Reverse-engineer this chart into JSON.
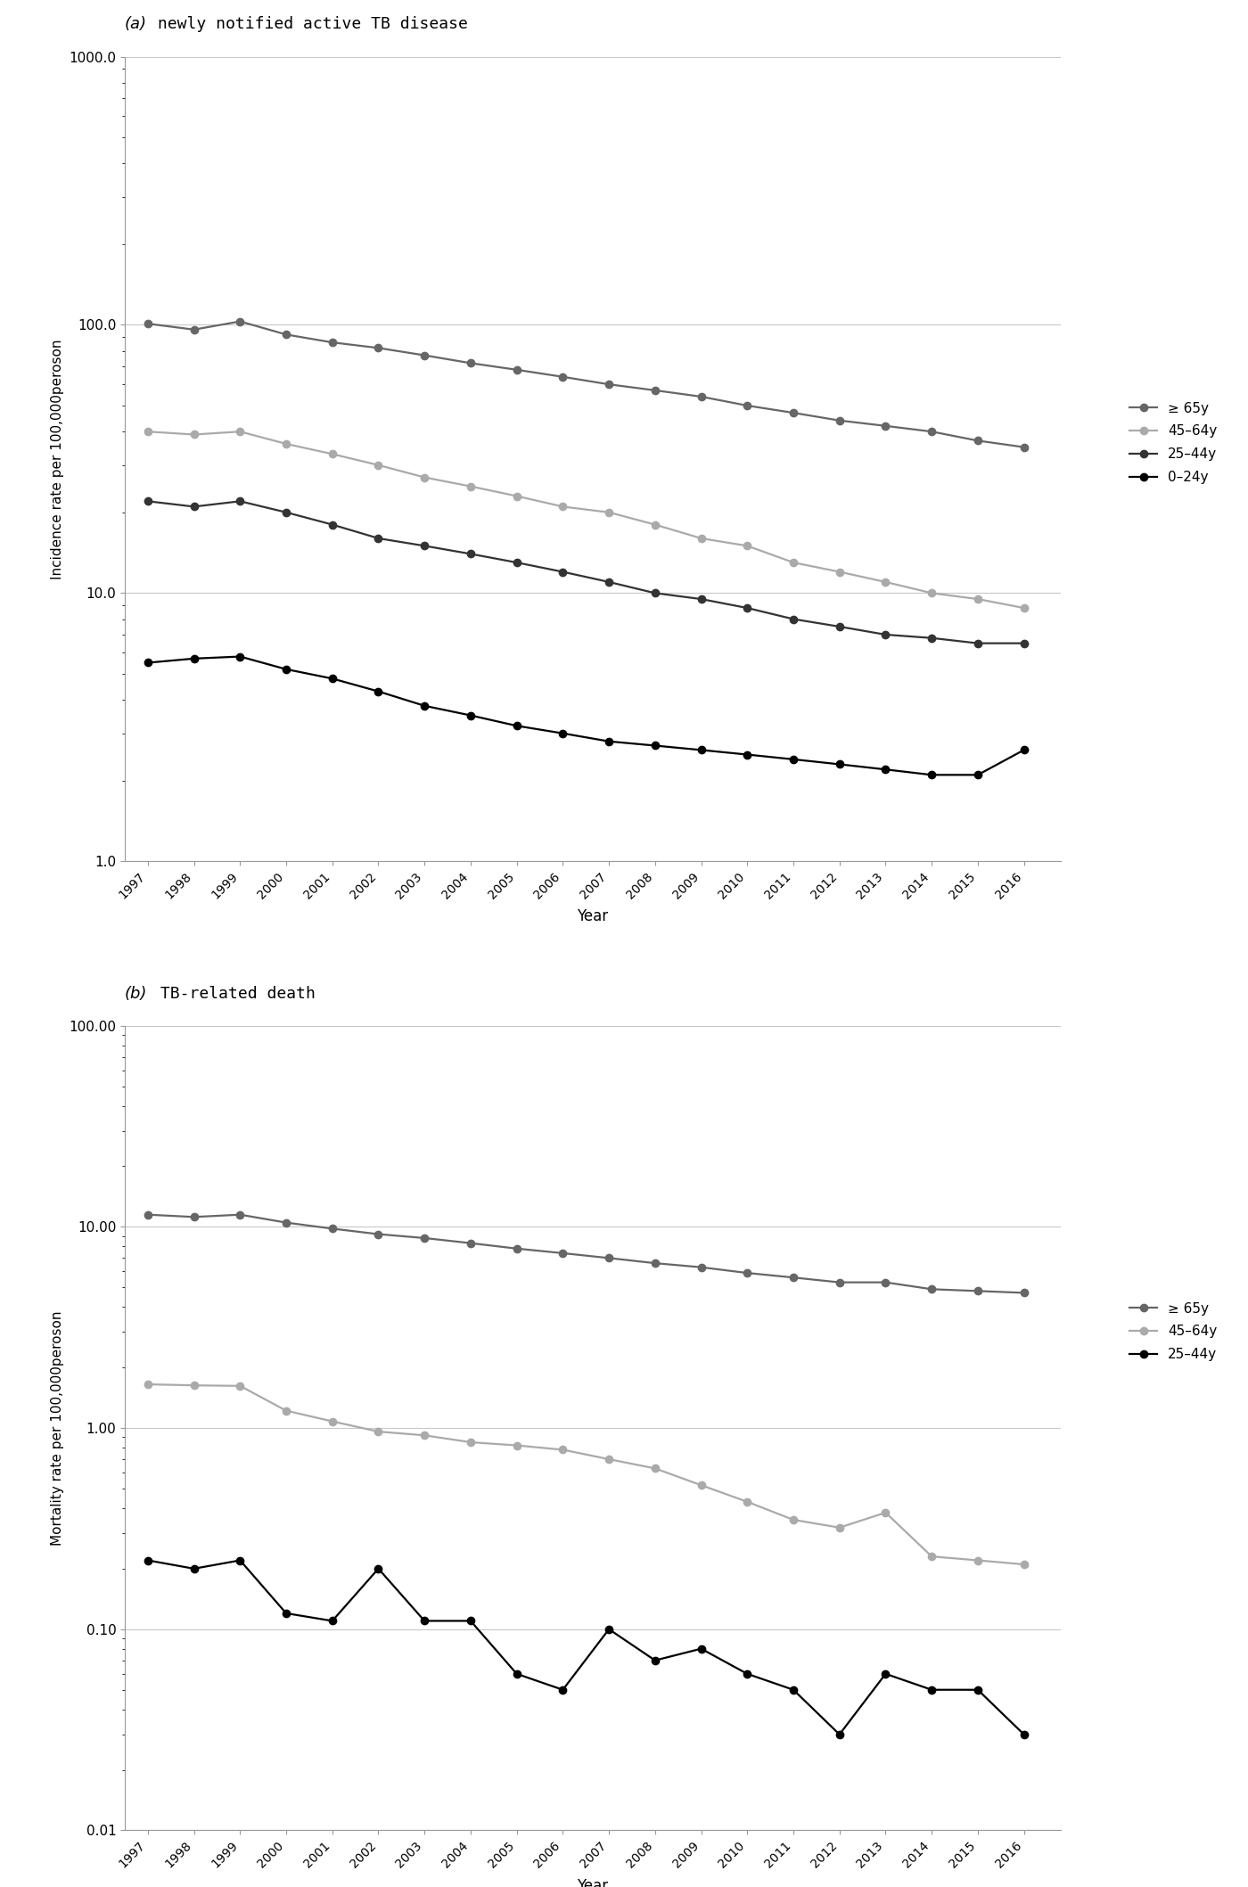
{
  "years": [
    1997,
    1998,
    1999,
    2000,
    2001,
    2002,
    2003,
    2004,
    2005,
    2006,
    2007,
    2008,
    2009,
    2010,
    2011,
    2012,
    2013,
    2014,
    2015,
    2016
  ],
  "incidence_ge65": [
    101,
    96,
    103,
    92,
    86,
    82,
    77,
    72,
    68,
    64,
    60,
    57,
    54,
    50,
    47,
    44,
    42,
    40,
    37,
    35
  ],
  "incidence_45_64": [
    40,
    39,
    40,
    36,
    33,
    30,
    27,
    25,
    23,
    21,
    20,
    18,
    16,
    15,
    13,
    12,
    11,
    10,
    9.5,
    8.8
  ],
  "incidence_25_44": [
    22,
    21,
    22,
    20,
    18,
    16,
    15,
    14,
    13,
    12,
    11,
    10,
    9.5,
    8.8,
    8.0,
    7.5,
    7.0,
    6.8,
    6.5,
    6.5
  ],
  "incidence_0_24": [
    5.5,
    5.7,
    5.8,
    5.2,
    4.8,
    4.3,
    3.8,
    3.5,
    3.2,
    3.0,
    2.8,
    2.7,
    2.6,
    2.5,
    2.4,
    2.3,
    2.2,
    2.1,
    2.1,
    2.6
  ],
  "mortality_ge65": [
    11.5,
    11.2,
    11.5,
    10.5,
    9.8,
    9.2,
    8.8,
    8.3,
    7.8,
    7.4,
    7.0,
    6.6,
    6.3,
    5.9,
    5.6,
    5.3,
    5.3,
    4.9,
    4.8,
    4.7
  ],
  "mortality_45_64": [
    1.65,
    1.63,
    1.62,
    1.22,
    1.08,
    0.96,
    0.92,
    0.85,
    0.82,
    0.78,
    0.7,
    0.63,
    0.52,
    0.43,
    0.35,
    0.32,
    0.38,
    0.23,
    0.22,
    0.21
  ],
  "mortality_25_44": [
    0.22,
    0.2,
    0.22,
    0.12,
    0.11,
    0.2,
    0.11,
    0.11,
    0.06,
    0.05,
    0.1,
    0.07,
    0.08,
    0.06,
    0.05,
    0.03,
    0.06,
    0.05,
    0.05,
    0.03
  ],
  "panel_a_title_italic": "(a)",
  "panel_a_title_rest": " newly notified active TB disease",
  "panel_b_title_italic": "(b)",
  "panel_b_title_rest": " TB-related death",
  "xlabel": "Year",
  "ylabel_a": "Incidence rate per 100,000peroson",
  "ylabel_b": "Mortality rate per 100,000peroson",
  "legend_a": [
    "≥ 65y",
    "45–64y",
    "25–44y",
    "0–24y"
  ],
  "legend_b": [
    "≥ 65y",
    "45–64y",
    "25–44y"
  ],
  "color_ge65": "#666666",
  "color_45_64": "#aaaaaa",
  "color_25_44": "#333333",
  "color_0_24": "#000000",
  "ylim_a": [
    1.0,
    1000.0
  ],
  "ylim_b": [
    0.01,
    100.0
  ],
  "yticks_a_vals": [
    1.0,
    10.0,
    100.0,
    1000.0
  ],
  "yticks_a_labels": [
    "1.0",
    "10.0",
    "100.0",
    "1000.0"
  ],
  "yticks_b_vals": [
    0.01,
    0.1,
    1.0,
    10.0,
    100.0
  ],
  "yticks_b_labels": [
    "0.01",
    "0.10",
    "1.00",
    "10.00",
    "100.00"
  ]
}
